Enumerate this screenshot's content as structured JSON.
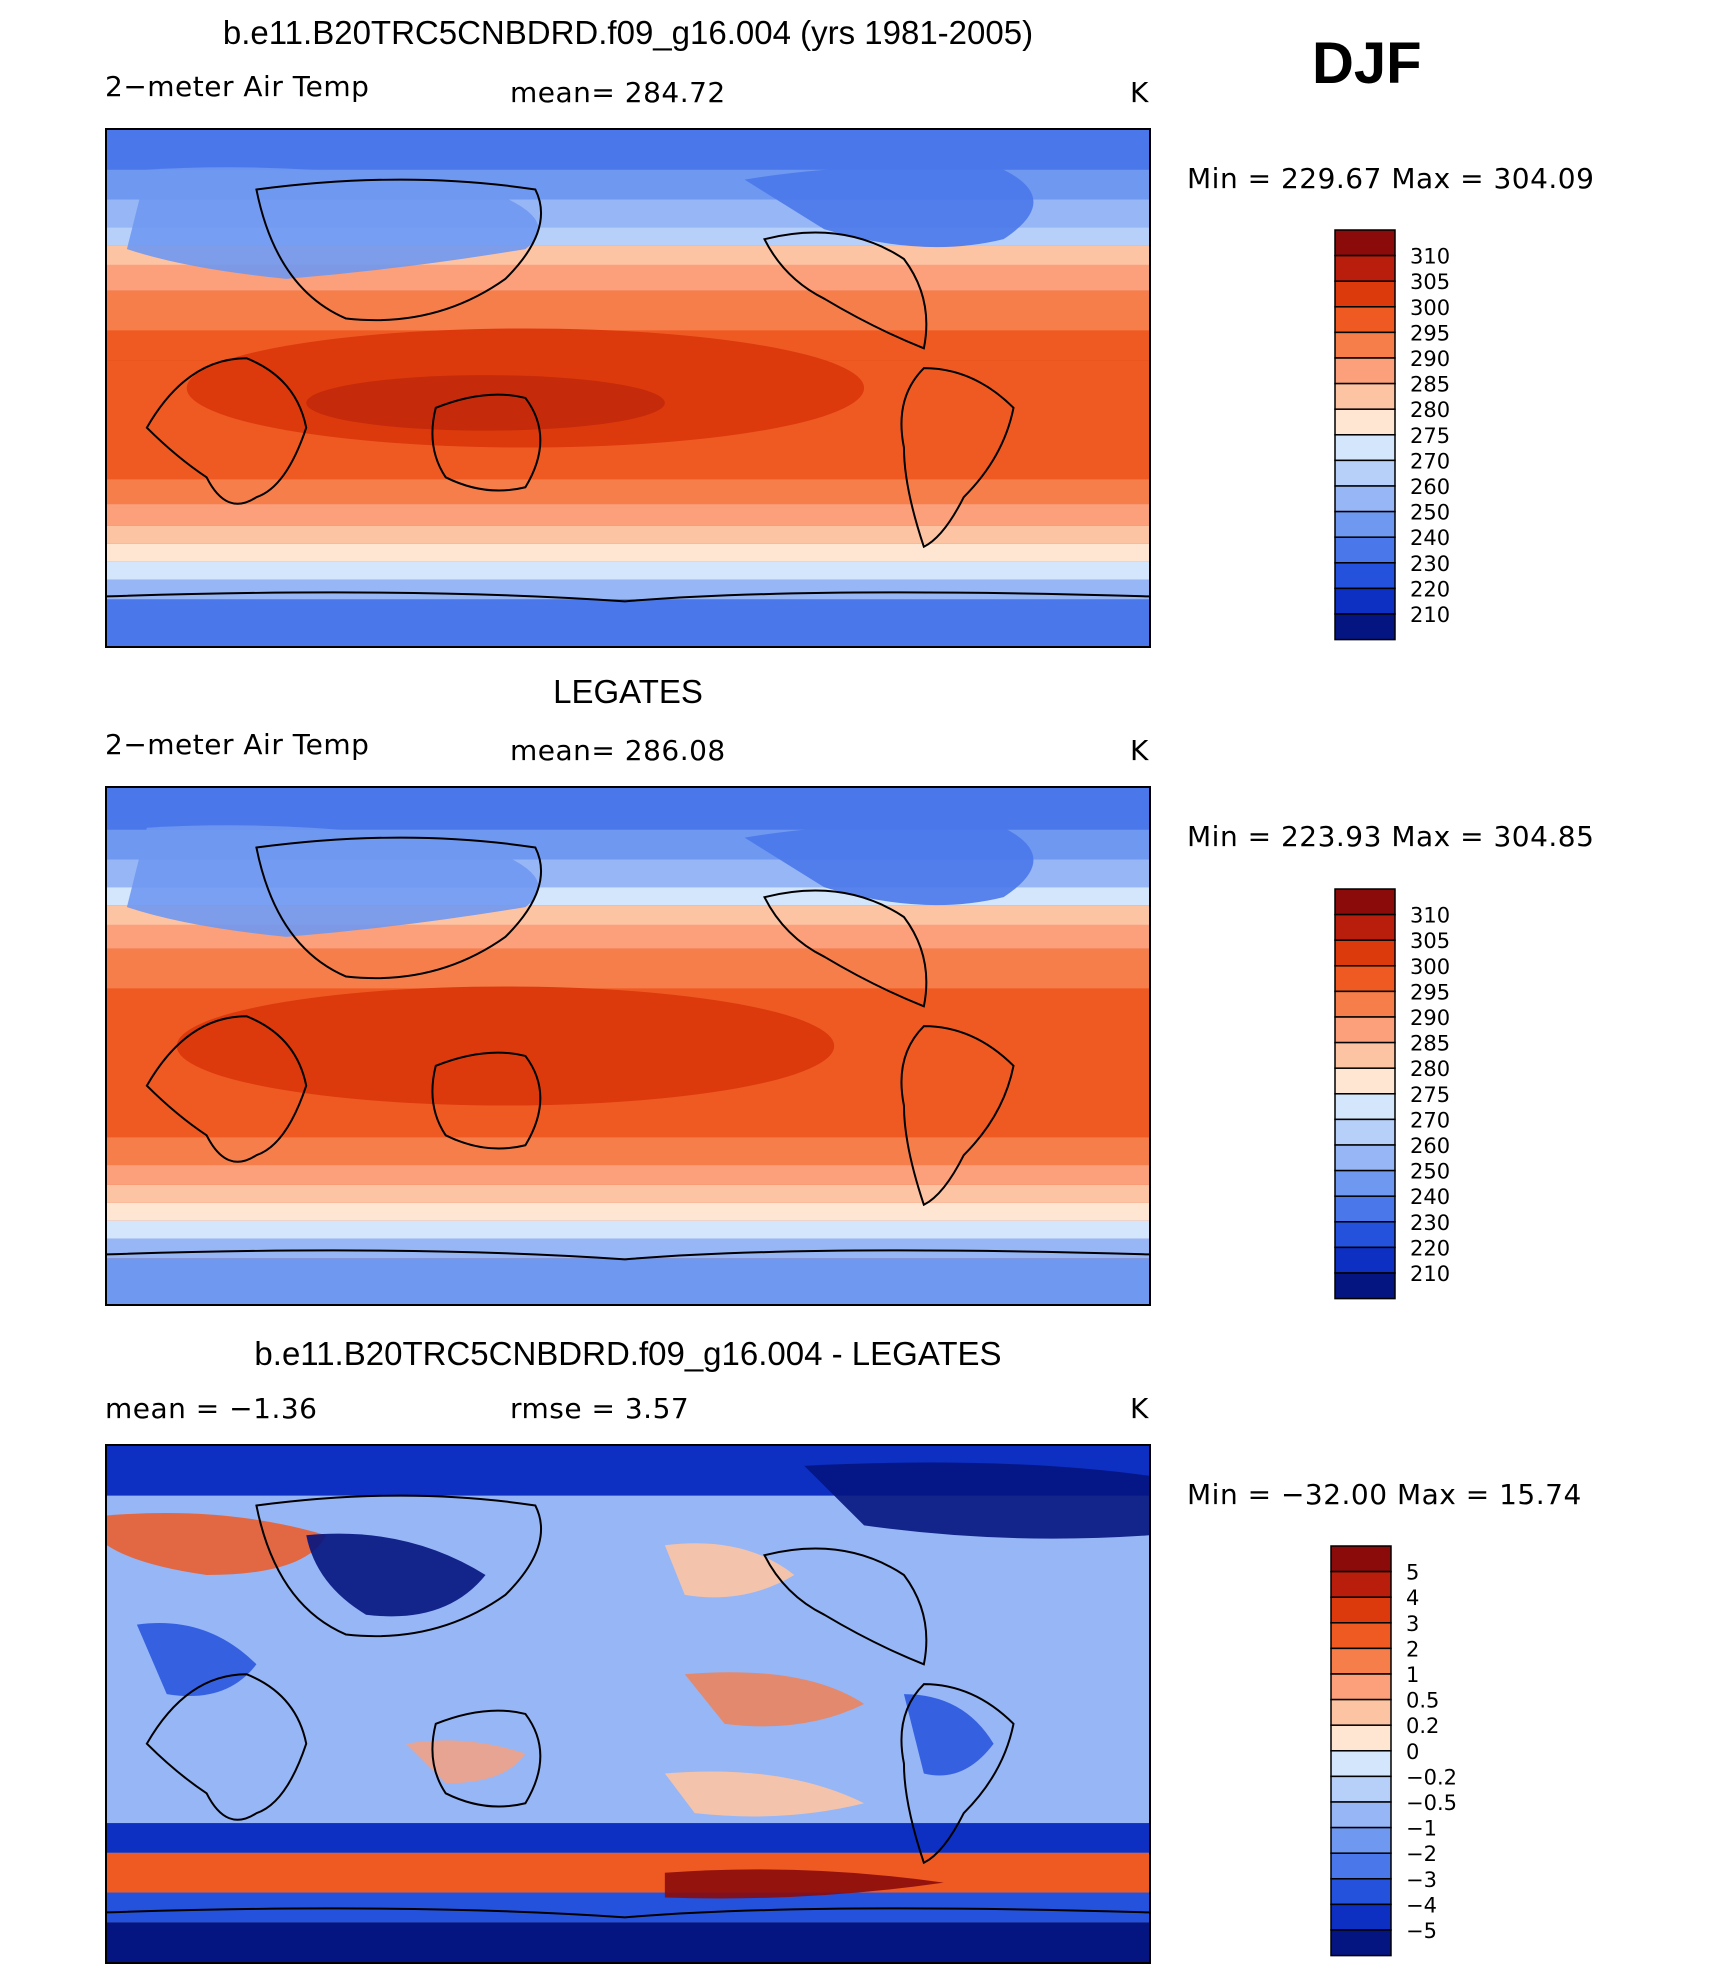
{
  "season": "DJF",
  "panels": [
    {
      "title": "b.e11.B20TRC5CNBDRD.f09_g16.004 (yrs 1981-2005)",
      "left_label": "2−meter Air Temp",
      "center_label": "mean=  284.72",
      "units": "K",
      "minmax": "Min  =  229.67  Max  =  304.09",
      "colorbar": {
        "labels": [
          "310",
          "305",
          "300",
          "295",
          "290",
          "285",
          "280",
          "275",
          "270",
          "260",
          "250",
          "240",
          "230",
          "220",
          "210"
        ],
        "colors": [
          "#8b0b0b",
          "#b81e0b",
          "#dc3a0c",
          "#ef5a22",
          "#f67e4b",
          "#fba07a",
          "#fdc4a4",
          "#fee6d2",
          "#d4e6fb",
          "#b7d0fa",
          "#96b6f6",
          "#6f98f1",
          "#4a78ea",
          "#2452dd",
          "#0d2fc2",
          "#041480"
        ]
      },
      "map_description": "model"
    },
    {
      "title": "LEGATES",
      "left_label": "2−meter Air Temp",
      "center_label": "mean=  286.08",
      "units": "K",
      "minmax": "Min  =  223.93  Max  =  304.85",
      "colorbar": {
        "labels": [
          "310",
          "305",
          "300",
          "295",
          "290",
          "285",
          "280",
          "275",
          "270",
          "260",
          "250",
          "240",
          "230",
          "220",
          "210"
        ],
        "colors": [
          "#8b0b0b",
          "#b81e0b",
          "#dc3a0c",
          "#ef5a22",
          "#f67e4b",
          "#fba07a",
          "#fdc4a4",
          "#fee6d2",
          "#d4e6fb",
          "#b7d0fa",
          "#96b6f6",
          "#6f98f1",
          "#4a78ea",
          "#2452dd",
          "#0d2fc2",
          "#041480"
        ]
      },
      "map_description": "obs"
    },
    {
      "title": "b.e11.B20TRC5CNBDRD.f09_g16.004 - LEGATES",
      "left_label": "mean =    −1.36",
      "center_label": "rmse =     3.57",
      "units": "K",
      "minmax": "Min  =  −32.00  Max  =    15.74",
      "colorbar": {
        "labels": [
          "5",
          "4",
          "3",
          "2",
          "1",
          "0.5",
          "0.2",
          "0",
          "−0.2",
          "−0.5",
          "−1",
          "−2",
          "−3",
          "−4",
          "−5"
        ],
        "colors": [
          "#8b0b0b",
          "#b81e0b",
          "#dc3a0c",
          "#ef5a22",
          "#f67e4b",
          "#fba07a",
          "#fdc4a4",
          "#fee6d2",
          "#d4e6fb",
          "#b7d0fa",
          "#96b6f6",
          "#6f98f1",
          "#4a78ea",
          "#2452dd",
          "#0d2fc2",
          "#041480"
        ]
      },
      "map_description": "diff"
    }
  ]
}
